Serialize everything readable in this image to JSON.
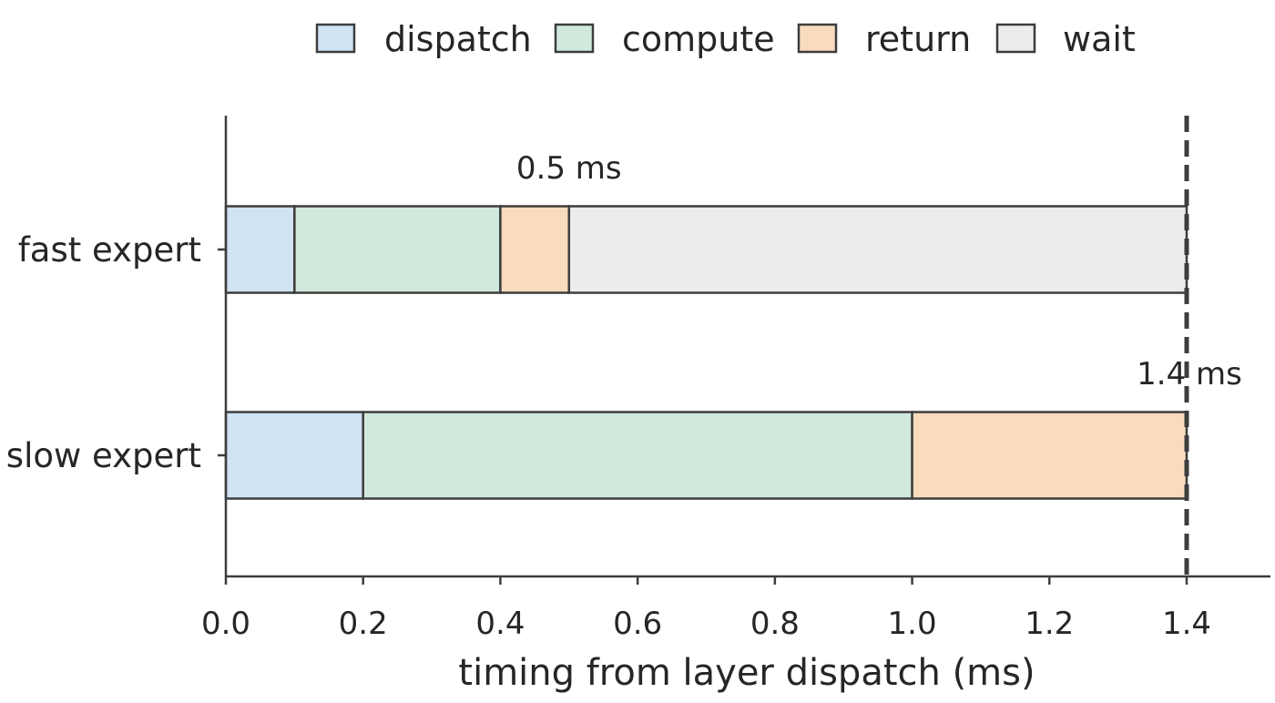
{
  "chart_data": {
    "type": "bar",
    "orientation": "horizontal",
    "stacked": true,
    "categories": [
      "fast expert",
      "slow expert"
    ],
    "series": [
      {
        "name": "dispatch",
        "color": "#cfe3f3",
        "values": [
          0.1,
          0.2
        ]
      },
      {
        "name": "compute",
        "color": "#d1e9dc",
        "values": [
          0.3,
          0.8
        ]
      },
      {
        "name": "return",
        "color": "#f8dcbd",
        "values": [
          0.1,
          0.4
        ]
      },
      {
        "name": "wait",
        "color": "#ececec",
        "values": [
          0.9,
          0.0
        ]
      }
    ],
    "xlabel": "timing from layer dispatch (ms)",
    "ylabel": "",
    "xlim": [
      0,
      1.45
    ],
    "xticks": [
      0.0,
      0.2,
      0.4,
      0.6,
      0.8,
      1.0,
      1.2,
      1.4
    ],
    "xtick_labels": [
      "0.0",
      "0.2",
      "0.4",
      "0.6",
      "0.8",
      "1.0",
      "1.2",
      "1.4"
    ],
    "reference_line": {
      "x": 1.4,
      "style": "dashed"
    },
    "annotations": [
      {
        "text": "0.5 ms",
        "x": 0.5,
        "category": "fast expert"
      },
      {
        "text": "1.4 ms",
        "x": 1.4,
        "category": "slow expert"
      }
    ],
    "legend": {
      "placement": "top",
      "entries": [
        "dispatch",
        "compute",
        "return",
        "wait"
      ]
    },
    "grid": false
  }
}
